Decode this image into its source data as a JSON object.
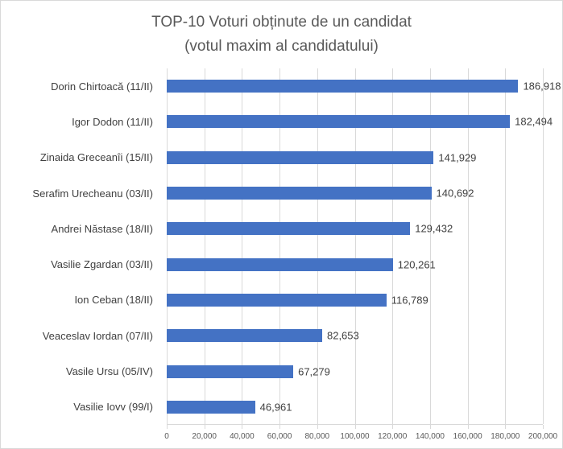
{
  "title": {
    "line1": "TOP-10 Voturi obținute de un candidat",
    "line2": "(votul maxim al candidatului)"
  },
  "colors": {
    "bar": "#4472C4",
    "gridline": "#D9D9D9",
    "axis_line": "#D9D9D9",
    "title_text": "#595959",
    "label_text": "#404040",
    "tick_text": "#595959",
    "border": "#D9D9D9",
    "background": "#FFFFFF"
  },
  "chart_data": {
    "type": "bar",
    "orientation": "horizontal",
    "title": "TOP-10 Voturi obținute de un candidat (votul maxim al candidatului)",
    "categories": [
      "Dorin Chirtoacă (11/II)",
      "Igor Dodon (11/II)",
      "Zinaida Greceanîi (15/II)",
      "Serafim Urecheanu (03/II)",
      "Andrei Năstase (18/II)",
      "Vasilie Zgardan (03/II)",
      "Ion Ceban (18/II)",
      "Veaceslav Iordan (07/II)",
      "Vasile Ursu (05/IV)",
      "Vasilie Iovv (99/I)"
    ],
    "values": [
      186918,
      182494,
      141929,
      140692,
      129432,
      120261,
      116789,
      82653,
      67279,
      46961
    ],
    "value_labels": [
      "186,918",
      "182,494",
      "141,929",
      "140,692",
      "129,432",
      "120,261",
      "116,789",
      "82,653",
      "67,279",
      "46,961"
    ],
    "xlabel": "",
    "ylabel": "",
    "xlim": [
      0,
      200000
    ],
    "x_ticks": [
      0,
      20000,
      40000,
      60000,
      80000,
      100000,
      120000,
      140000,
      160000,
      180000,
      200000
    ],
    "x_tick_labels": [
      "0",
      "20,000",
      "40,000",
      "60,000",
      "80,000",
      "100,000",
      "120,000",
      "140,000",
      "160,000",
      "180,000",
      "200,000"
    ],
    "grid": true,
    "legend": false
  }
}
